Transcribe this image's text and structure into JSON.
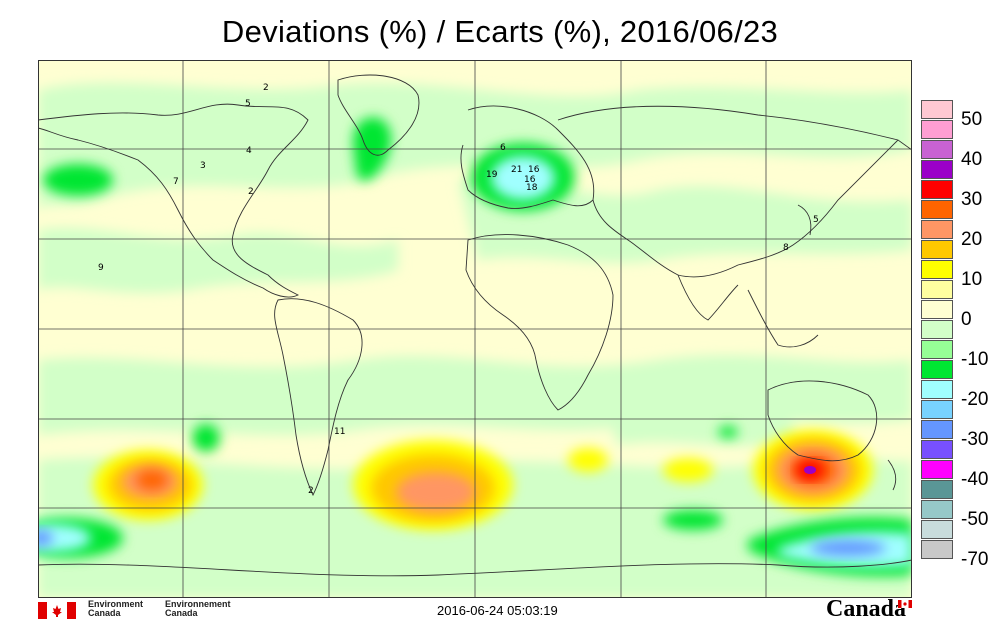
{
  "title": "Deviations (%) / Ecarts (%), 2016/06/23",
  "timestamp": "2016-06-24 05:03:19",
  "agency": {
    "en_line1": "Environment",
    "en_line2": "Canada",
    "fr_line1": "Environnement",
    "fr_line2": "Canada"
  },
  "wordmark": "Canada",
  "legend": {
    "labels": [
      "50",
      "40",
      "30",
      "20",
      "10",
      "0",
      "-10",
      "-20",
      "-30",
      "-40",
      "-50",
      "-70"
    ],
    "colors": [
      "#ffc8d2",
      "#ff9ed2",
      "#c862d2",
      "#9b00c8",
      "#ff0000",
      "#ff6400",
      "#ff9664",
      "#ffc800",
      "#ffff00",
      "#ffffa0",
      "#ffffd2",
      "#d2ffc8",
      "#96ff96",
      "#00e632",
      "#a0ffff",
      "#78d2ff",
      "#6496ff",
      "#7850ff",
      "#ff00ff",
      "#5a9696",
      "#96c8c8",
      "#c8dcdc",
      "#c8c8c8"
    ]
  },
  "stations": [
    "2",
    "3",
    "4",
    "5",
    "7",
    "9",
    "2",
    "6",
    "19",
    "21",
    "16",
    "16",
    "18",
    "5",
    "8",
    "11",
    "2"
  ]
}
